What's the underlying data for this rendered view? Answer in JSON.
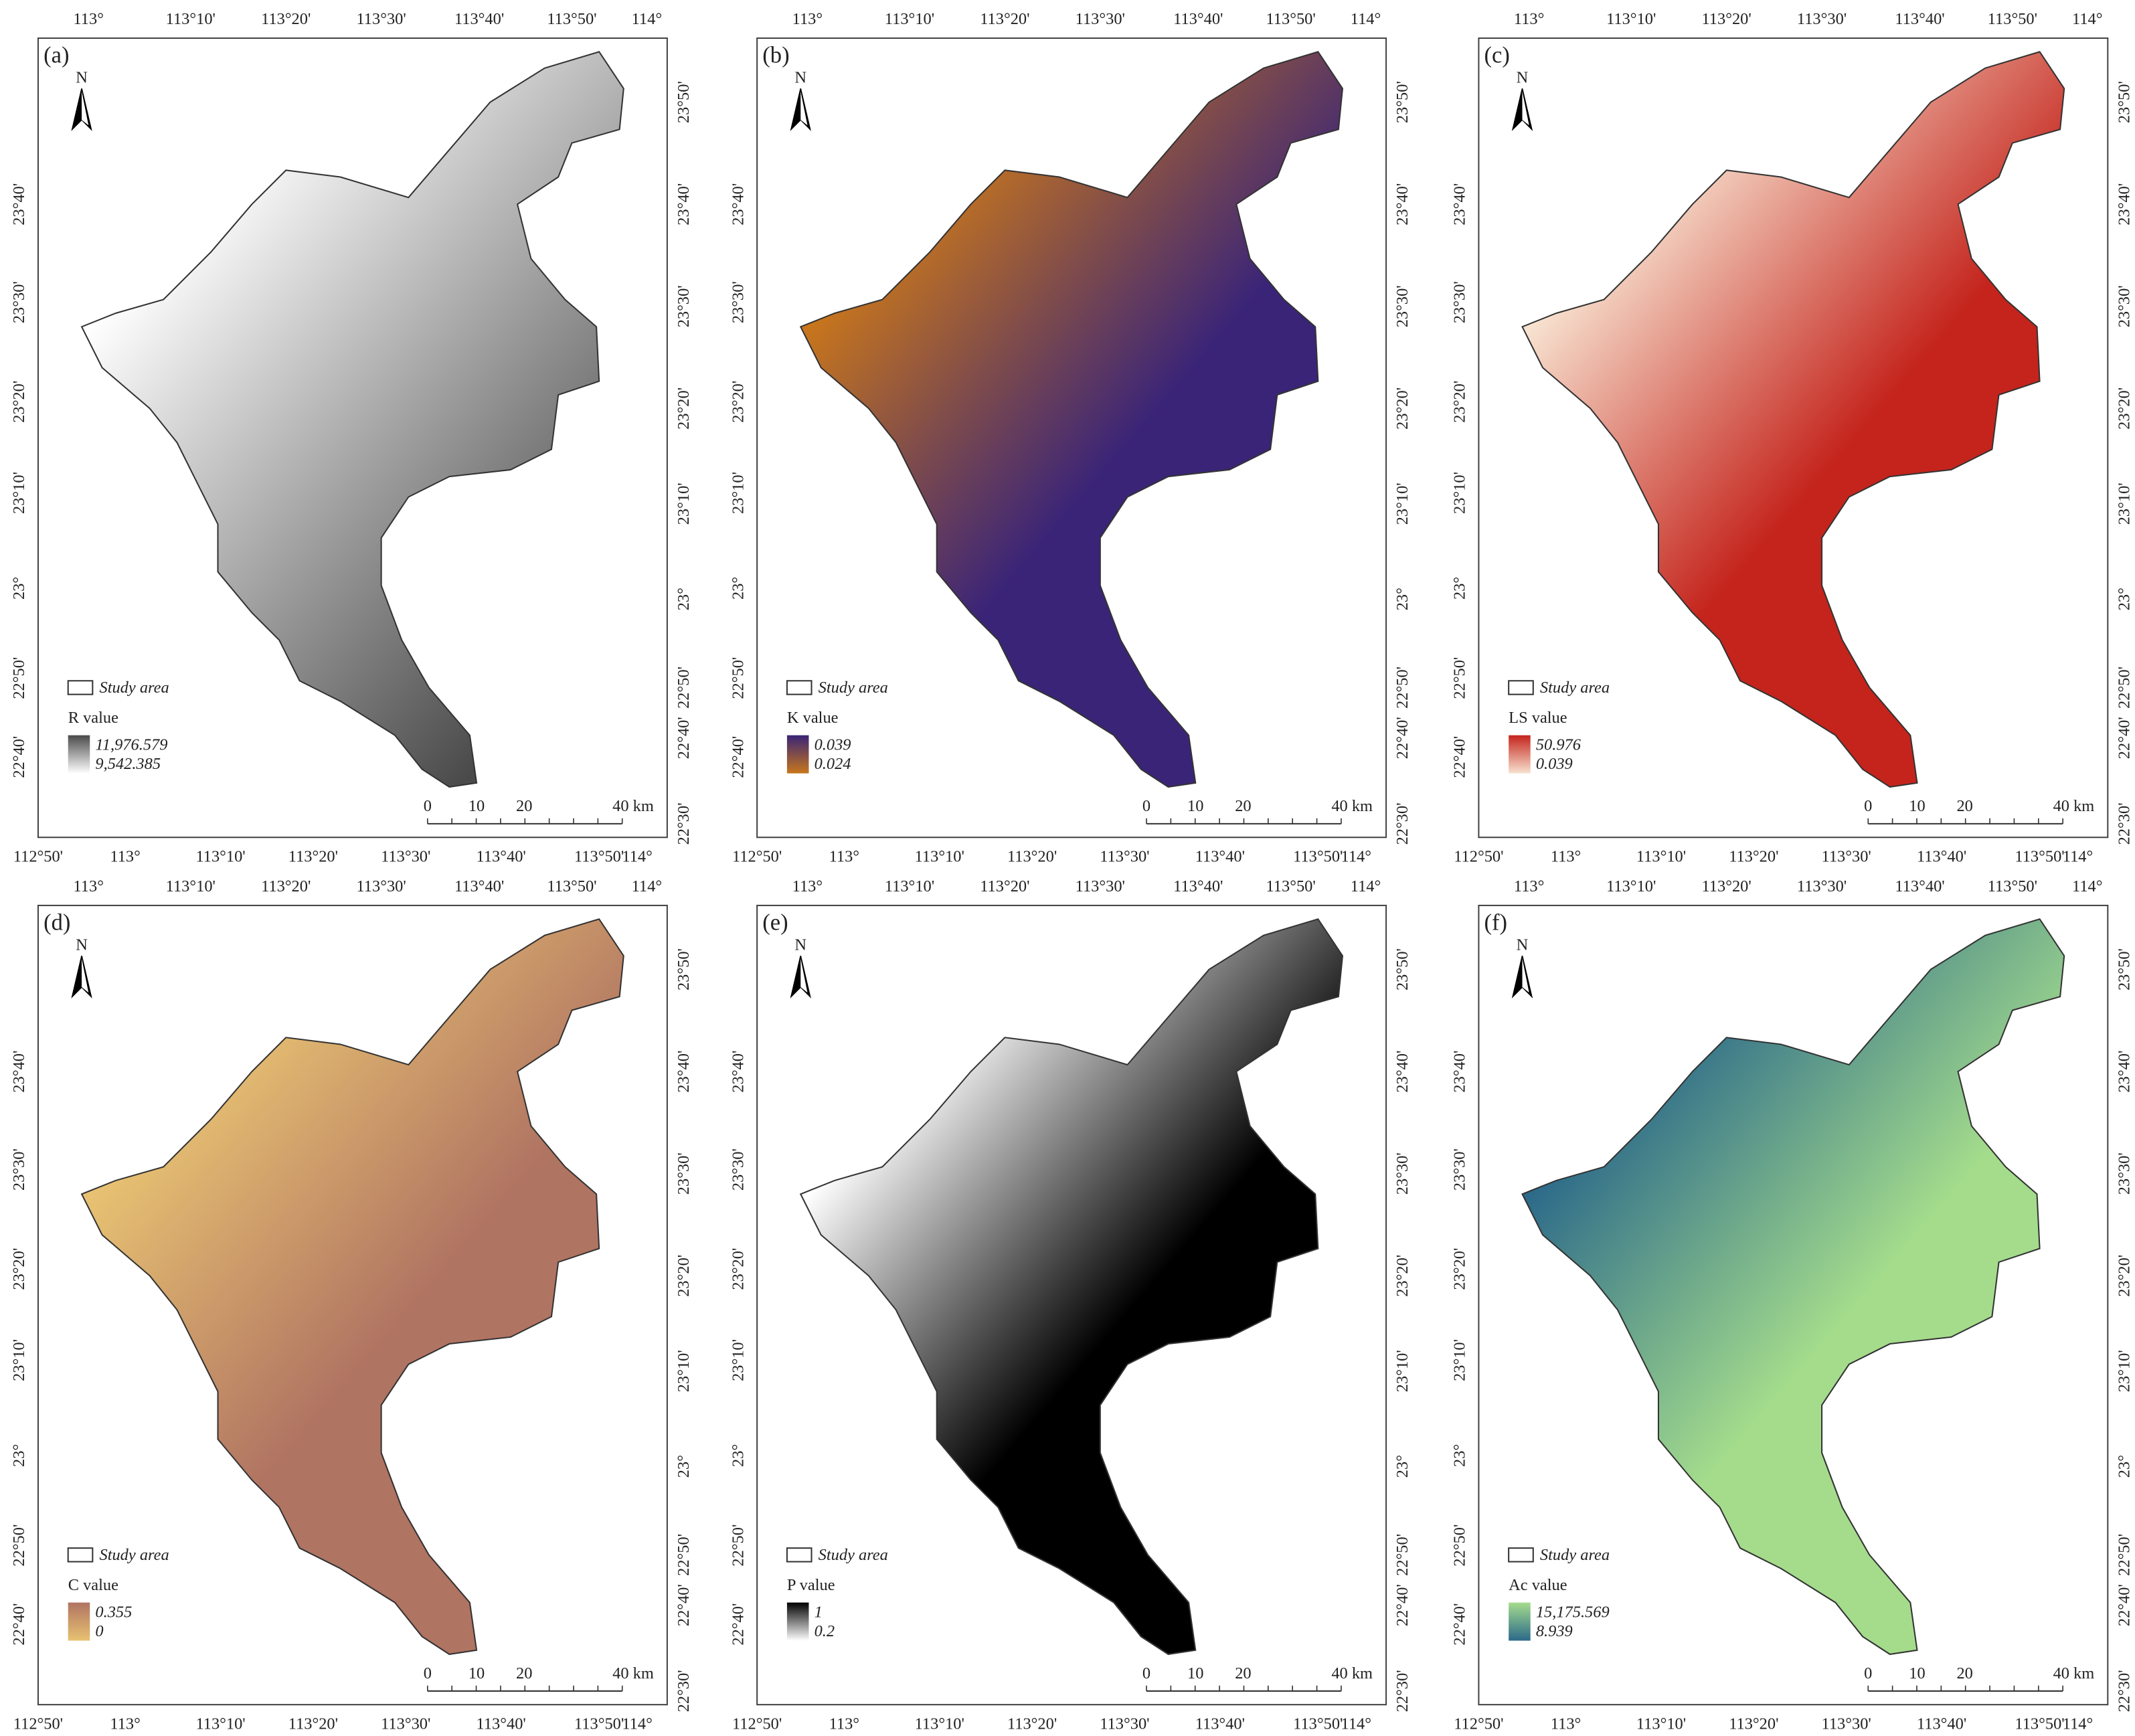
{
  "lon_top": [
    "113°",
    "113°10'",
    "113°20'",
    "113°30'",
    "113°40'",
    "113°50'",
    "114°"
  ],
  "lon_bottom": [
    "112°50'",
    "113°",
    "113°10'",
    "113°20'",
    "113°30'",
    "113°40'",
    "113°50'",
    "114°"
  ],
  "lat_left": [
    "23°40'",
    "23°30'",
    "23°20'",
    "23°10'",
    "23°",
    "22°50'",
    "22°40'"
  ],
  "lat_right": [
    "23°50'",
    "23°40'",
    "23°30'",
    "23°20'",
    "23°10'",
    "23°",
    "22°50'",
    "22°40'",
    "22°30'"
  ],
  "north": "N",
  "study_area": "Study area",
  "scale_bar": [
    "0",
    "10",
    "20",
    "40 km"
  ],
  "panels": [
    {
      "label": "(a)",
      "legend_title": "R value",
      "legend_max": "11,976.579",
      "legend_min": "9,542.385",
      "colors": [
        "#4a4a4a",
        "#ffffff"
      ]
    },
    {
      "label": "(b)",
      "legend_title": "K value",
      "legend_max": "0.039",
      "legend_min": "0.024",
      "colors": [
        "#3a2478",
        "#c8761c"
      ]
    },
    {
      "label": "(c)",
      "legend_title": "LS value",
      "legend_max": "50.976",
      "legend_min": "0.039",
      "colors": [
        "#c4241c",
        "#f8e2d0"
      ]
    },
    {
      "label": "(d)",
      "legend_title": "C value",
      "legend_max": "0.355",
      "legend_min": "0",
      "colors": [
        "#b07462",
        "#e8c272"
      ]
    },
    {
      "label": "(e)",
      "legend_title": "P value",
      "legend_max": "1",
      "legend_min": "0.2",
      "colors": [
        "#000000",
        "#ffffff"
      ]
    },
    {
      "label": "(f)",
      "legend_title": "Ac value",
      "legend_max": "15,175.569",
      "legend_min": "8.939",
      "colors": [
        "#a4dc8c",
        "#2c6a8a"
      ]
    }
  ]
}
